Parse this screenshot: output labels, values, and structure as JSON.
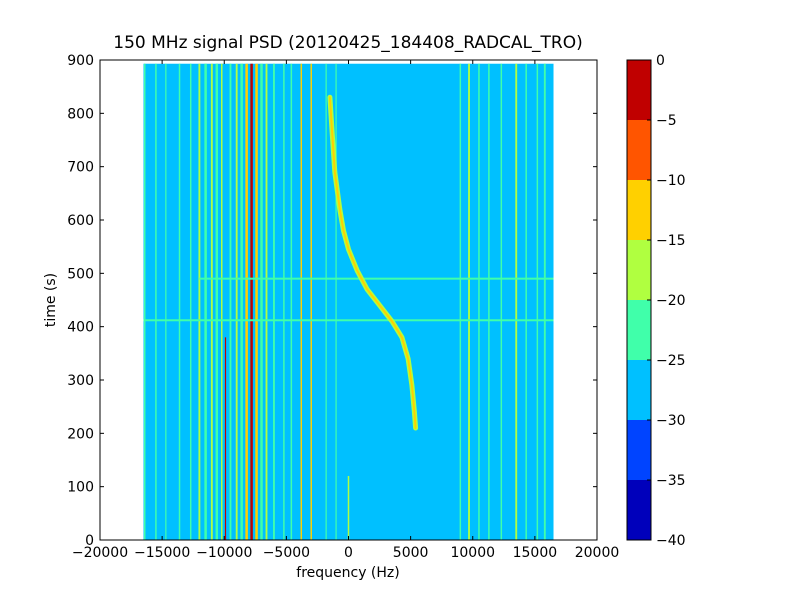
{
  "chart_data": {
    "type": "heatmap",
    "title": "150 MHz signal PSD (20120425_184408_RADCAL_TRO)",
    "xlabel": "frequency (Hz)",
    "ylabel": "time (s)",
    "xlim": [
      -20000,
      20000
    ],
    "ylim": [
      0,
      900
    ],
    "xticks": [
      -20000,
      -15000,
      -10000,
      -5000,
      0,
      5000,
      10000,
      15000,
      20000
    ],
    "xtick_labels": [
      "−20000",
      "−15000",
      "−10000",
      "−5000",
      "0",
      "5000",
      "10000",
      "15000",
      "20000"
    ],
    "yticks": [
      0,
      100,
      200,
      300,
      400,
      500,
      600,
      700,
      800,
      900
    ],
    "ytick_labels": [
      "0",
      "100",
      "200",
      "300",
      "400",
      "500",
      "600",
      "700",
      "800",
      "900"
    ],
    "data_extent": {
      "freq": [
        -16500,
        16500
      ],
      "time": [
        0,
        893
      ]
    },
    "background_level": -27,
    "colorbar": {
      "levels": [
        0,
        -5,
        -10,
        -15,
        -20,
        -25,
        -30,
        -35,
        -40
      ],
      "tick_labels": [
        "0",
        "−5",
        "−10",
        "−15",
        "−20",
        "−25",
        "−30",
        "−35",
        "−40"
      ],
      "colors": [
        "#0000bb",
        "#0044ff",
        "#00c0ff",
        "#40ffaa",
        "#b0ff40",
        "#ffd000",
        "#ff5500",
        "#c00000"
      ]
    },
    "vertical_lines": [
      {
        "f": -16400,
        "level": -22,
        "width": 120
      },
      {
        "f": -15500,
        "level": -22,
        "width": 120
      },
      {
        "f": -14700,
        "level": -23,
        "width": 100
      },
      {
        "f": -13600,
        "level": -22,
        "width": 120
      },
      {
        "f": -12700,
        "level": -22,
        "width": 120
      },
      {
        "f": -12000,
        "level": -17,
        "width": 150
      },
      {
        "f": -11500,
        "level": -22,
        "width": 200
      },
      {
        "f": -11000,
        "level": -17,
        "width": 150
      },
      {
        "f": -10600,
        "level": -22,
        "width": 200
      },
      {
        "f": -10200,
        "level": -17,
        "width": 120
      },
      {
        "f": -9900,
        "level": -3,
        "width": 80,
        "t0": 0,
        "t1": 380
      },
      {
        "f": -9500,
        "level": -22,
        "width": 150
      },
      {
        "f": -9000,
        "level": -17,
        "width": 150
      },
      {
        "f": -8600,
        "level": -22,
        "width": 200
      },
      {
        "f": -8200,
        "level": -13,
        "width": 200
      },
      {
        "f": -7800,
        "level": -3,
        "width": 200
      },
      {
        "f": -7400,
        "level": -13,
        "width": 200
      },
      {
        "f": -7000,
        "level": -22,
        "width": 200
      },
      {
        "f": -6600,
        "level": -17,
        "width": 150
      },
      {
        "f": -6000,
        "level": -22,
        "width": 150
      },
      {
        "f": -5200,
        "level": -22,
        "width": 120
      },
      {
        "f": -4600,
        "level": -22,
        "width": 120
      },
      {
        "f": -3800,
        "level": -12,
        "width": 120
      },
      {
        "f": -3000,
        "level": -12,
        "width": 120
      },
      {
        "f": -1800,
        "level": -22,
        "width": 100
      },
      {
        "f": -1000,
        "level": -22,
        "width": 100
      },
      {
        "f": 0,
        "level": -17,
        "width": 120,
        "t0": 0,
        "t1": 120
      },
      {
        "f": 9000,
        "level": -22,
        "width": 120
      },
      {
        "f": 9700,
        "level": -17,
        "width": 150
      },
      {
        "f": 10500,
        "level": -22,
        "width": 120
      },
      {
        "f": 11300,
        "level": -22,
        "width": 120
      },
      {
        "f": 12300,
        "level": -22,
        "width": 120
      },
      {
        "f": 13500,
        "level": -17,
        "width": 150
      },
      {
        "f": 14300,
        "level": -22,
        "width": 120
      },
      {
        "f": 15200,
        "level": -22,
        "width": 120
      },
      {
        "f": 15800,
        "level": -22,
        "width": 150
      }
    ],
    "horizontal_lines": [
      {
        "t": 412,
        "level": -22,
        "f0": -16500,
        "f1": 16500
      },
      {
        "t": 490,
        "level": -22,
        "f0": -12000,
        "f1": 16500
      }
    ],
    "sweep_curve": {
      "level": -13,
      "points": [
        [
          -1500,
          830
        ],
        [
          -1300,
          760
        ],
        [
          -1100,
          690
        ],
        [
          -700,
          620
        ],
        [
          -400,
          580
        ],
        [
          0,
          545
        ],
        [
          700,
          505
        ],
        [
          1500,
          470
        ],
        [
          2500,
          440
        ],
        [
          3500,
          410
        ],
        [
          4300,
          380
        ],
        [
          4800,
          340
        ],
        [
          5100,
          290
        ],
        [
          5300,
          240
        ],
        [
          5400,
          210
        ]
      ]
    }
  }
}
